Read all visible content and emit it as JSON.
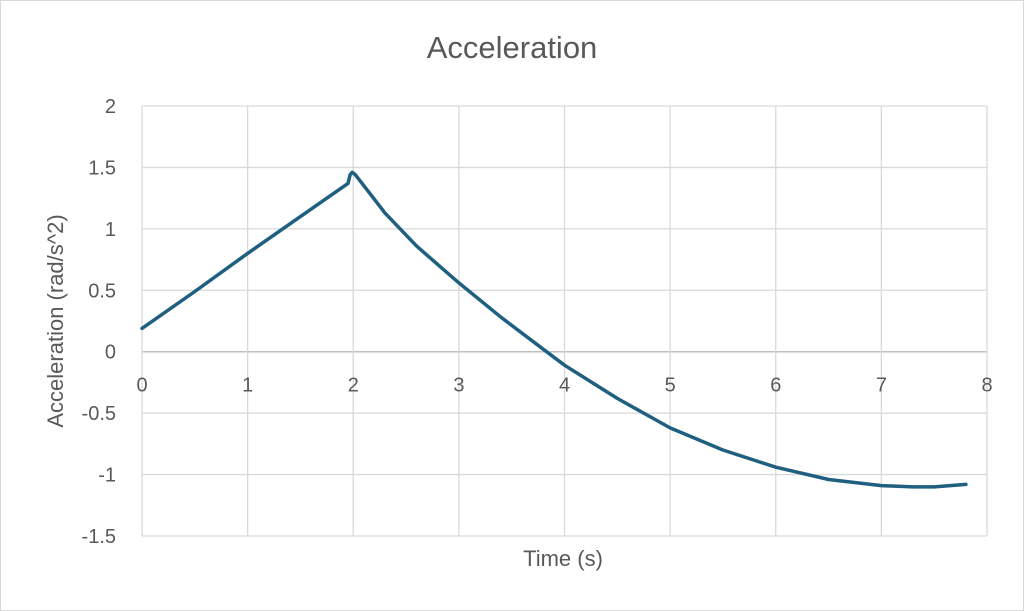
{
  "chart_data": {
    "type": "line",
    "title": "Acceleration",
    "xlabel": "Time (s)",
    "ylabel": "Acceleration (rad/s^2)",
    "xlim": [
      0,
      8
    ],
    "ylim": [
      -1.5,
      2
    ],
    "x_ticks": [
      "0",
      "1",
      "2",
      "3",
      "4",
      "5",
      "6",
      "7",
      "8"
    ],
    "y_ticks": [
      "2",
      "1.5",
      "1",
      "0.5",
      "0",
      "-0.5",
      "-1",
      "-1.5"
    ],
    "grid": true,
    "legend": "none",
    "series": [
      {
        "color": "#1f5f7f",
        "x": [
          0,
          0.5,
          1.0,
          1.5,
          1.95,
          1.97,
          1.99,
          2.02,
          2.3,
          2.6,
          3.0,
          3.4,
          3.8,
          4.0,
          4.5,
          5.0,
          5.5,
          6.0,
          6.5,
          7.0,
          7.3,
          7.5,
          7.8
        ],
        "y": [
          0.19,
          0.49,
          0.8,
          1.1,
          1.37,
          1.44,
          1.46,
          1.44,
          1.13,
          0.86,
          0.56,
          0.28,
          0.02,
          -0.11,
          -0.38,
          -0.62,
          -0.8,
          -0.94,
          -1.04,
          -1.09,
          -1.1,
          -1.1,
          -1.08
        ]
      }
    ]
  }
}
